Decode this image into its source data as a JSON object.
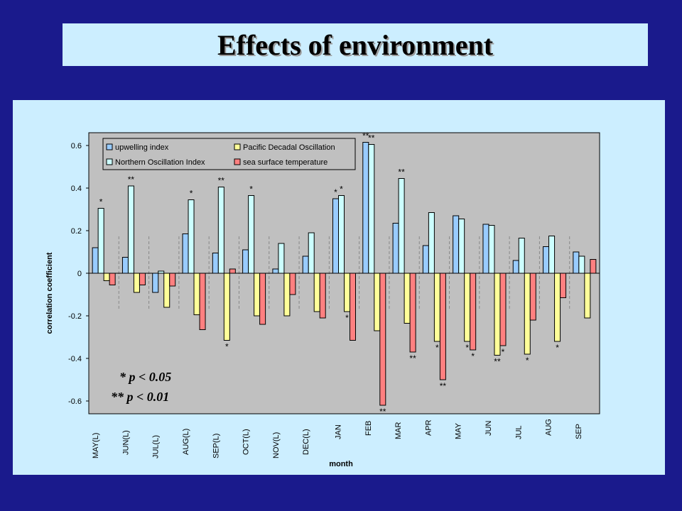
{
  "title": "Effects of environment",
  "colors": {
    "background": "#1a1a8c",
    "panel": "#cceeff",
    "plot_area": "#c0c0c0",
    "upwelling": "#99ccff",
    "npgo": "#ccffff",
    "pdo": "#ffff99",
    "sst": "#ff8080"
  },
  "notes": {
    "p05": "* p < 0.05",
    "p01": "** p < 0.01"
  },
  "chart_data": {
    "type": "bar",
    "title": "",
    "xlabel": "month",
    "ylabel": "correlation coefficient",
    "ylim": [
      -0.65,
      0.65
    ],
    "yticks": [
      {
        "v": 0.6,
        "label": "0.6"
      },
      {
        "v": 0.4,
        "label": "0.4"
      },
      {
        "v": 0.2,
        "label": "0.2"
      },
      {
        "v": 0,
        "label": "0"
      },
      {
        "v": -0.2,
        "label": "-0.2"
      },
      {
        "v": -0.4,
        "label": "-0.4"
      },
      {
        "v": -0.6,
        "label": "-0.6"
      }
    ],
    "legend_position": "top-left",
    "categories": [
      "MAY(L)",
      "JUN(L)",
      "JUL(L)",
      "AUG(L)",
      "SEP(L)",
      "OCT(L)",
      "NOV(L)",
      "DEC(L)",
      "JAN",
      "FEB",
      "MAR",
      "APR",
      "MAY",
      "JUN",
      "JUL",
      "AUG",
      "SEP"
    ],
    "series": [
      {
        "name": "upwelling index",
        "color": "#99ccff",
        "values": [
          0.12,
          0.075,
          -0.09,
          0.185,
          0.095,
          0.11,
          0.02,
          0.08,
          0.35,
          0.615,
          0.235,
          0.13,
          0.27,
          0.23,
          0.06,
          0.125,
          0.1
        ],
        "sig": [
          "",
          "",
          "",
          "",
          "",
          "",
          "",
          "",
          "*",
          "**",
          "",
          "",
          "",
          "",
          "",
          "",
          ""
        ]
      },
      {
        "name": "Northern Oscillation Index",
        "color": "#ccffff",
        "values": [
          0.305,
          0.41,
          0.01,
          0.345,
          0.405,
          0.365,
          0.14,
          0.19,
          0.365,
          0.605,
          0.445,
          0.285,
          0.255,
          0.225,
          0.165,
          0.175,
          0.08
        ],
        "sig": [
          "*",
          "**",
          "",
          "*",
          "**",
          "*",
          "",
          "",
          "*",
          "**",
          "**",
          "",
          "",
          "",
          "",
          "",
          ""
        ]
      },
      {
        "name": "Pacific Decadal Oscillation",
        "color": "#ffff99",
        "values": [
          -0.035,
          -0.09,
          -0.16,
          -0.195,
          -0.315,
          -0.2,
          -0.2,
          -0.18,
          -0.18,
          -0.27,
          -0.235,
          -0.32,
          -0.32,
          -0.385,
          -0.38,
          -0.32,
          -0.21
        ],
        "sig": [
          "",
          "",
          "",
          "",
          "*",
          "",
          "",
          "",
          "*",
          "",
          "",
          "*",
          "*",
          "**",
          "*",
          "*",
          ""
        ]
      },
      {
        "name": "sea surface temperature",
        "color": "#ff8080",
        "values": [
          -0.055,
          -0.055,
          -0.06,
          -0.265,
          0.02,
          -0.24,
          -0.1,
          -0.21,
          -0.315,
          -0.62,
          -0.37,
          -0.5,
          -0.36,
          -0.34,
          -0.22,
          -0.115,
          0.065
        ],
        "sig": [
          "",
          "",
          "",
          "",
          "",
          "",
          "",
          "",
          "",
          "**",
          "**",
          "**",
          "*",
          "*",
          "",
          "",
          ""
        ]
      }
    ]
  }
}
